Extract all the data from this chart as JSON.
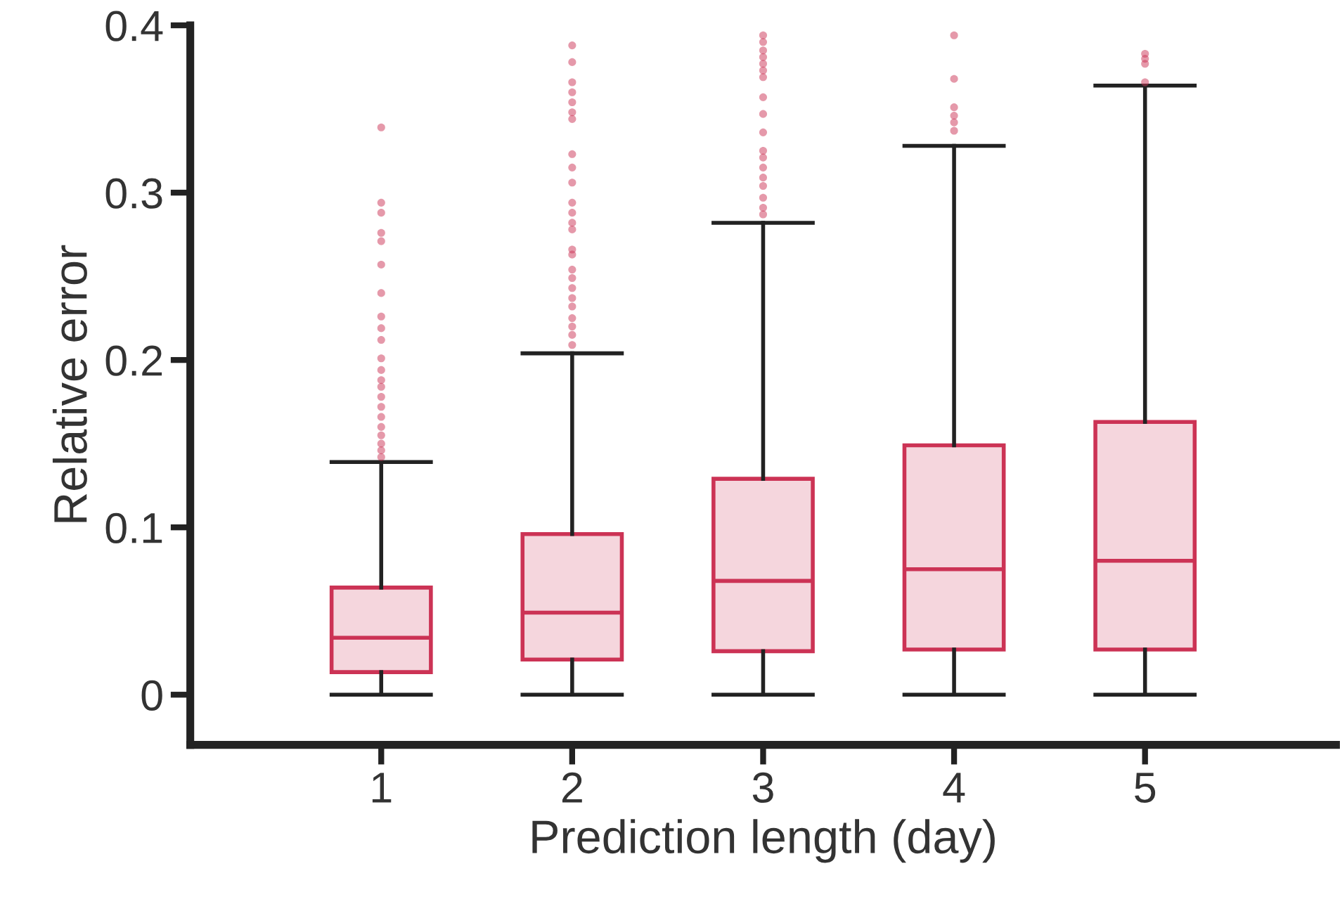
{
  "chart_data": {
    "type": "box",
    "xlabel": "Prediction length (day)",
    "ylabel": "Relative error",
    "x": [
      1,
      2,
      3,
      4,
      5
    ],
    "xlim": [
      0,
      6
    ],
    "xticks": [
      1,
      2,
      3,
      4,
      5
    ],
    "ylim": [
      -0.03,
      0.4
    ],
    "yticks": [
      0,
      0.1,
      0.2,
      0.3,
      0.4
    ],
    "grid": false,
    "series": [
      {
        "color": "#cc3355",
        "boxes": [
          {
            "low": 0,
            "q1": 0.0135,
            "median": 0.034,
            "q3": 0.064,
            "high": 0.139,
            "outliers": [
              0.339,
              0.294,
              0.288,
              0.276,
              0.271,
              0.257,
              0.24,
              0.226,
              0.219,
              0.212,
              0.201,
              0.194,
              0.188,
              0.184,
              0.178,
              0.172,
              0.166,
              0.16,
              0.155,
              0.15,
              0.146,
              0.142
            ]
          },
          {
            "low": 0,
            "q1": 0.021,
            "median": 0.049,
            "q3": 0.096,
            "high": 0.204,
            "outliers": [
              0.388,
              0.378,
              0.366,
              0.36,
              0.354,
              0.348,
              0.344,
              0.323,
              0.315,
              0.306,
              0.294,
              0.288,
              0.282,
              0.278,
              0.266,
              0.263,
              0.254,
              0.249,
              0.243,
              0.237,
              0.232,
              0.225,
              0.22,
              0.215,
              0.209
            ]
          },
          {
            "low": 0,
            "q1": 0.026,
            "median": 0.068,
            "q3": 0.129,
            "high": 0.282,
            "outliers": [
              0.394,
              0.39,
              0.385,
              0.381,
              0.377,
              0.373,
              0.369,
              0.357,
              0.347,
              0.336,
              0.325,
              0.321,
              0.315,
              0.309,
              0.304,
              0.297,
              0.291,
              0.287
            ]
          },
          {
            "low": 0,
            "q1": 0.027,
            "median": 0.075,
            "q3": 0.149,
            "high": 0.328,
            "outliers": [
              0.394,
              0.368,
              0.351,
              0.346,
              0.342,
              0.337
            ]
          },
          {
            "low": 0,
            "q1": 0.027,
            "median": 0.08,
            "q3": 0.163,
            "high": 0.364,
            "outliers": [
              0.383,
              0.38,
              0.377,
              0.366
            ]
          }
        ]
      }
    ]
  }
}
